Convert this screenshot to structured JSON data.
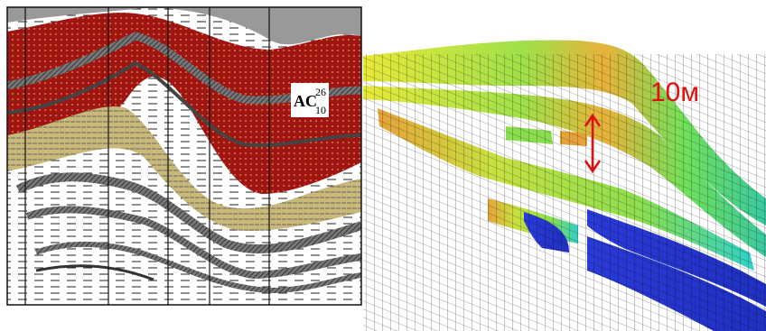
{
  "section": {
    "layer_label": {
      "main": "AC",
      "sup": "26",
      "sub": "10"
    }
  },
  "model": {
    "scale_label": "10м"
  }
}
